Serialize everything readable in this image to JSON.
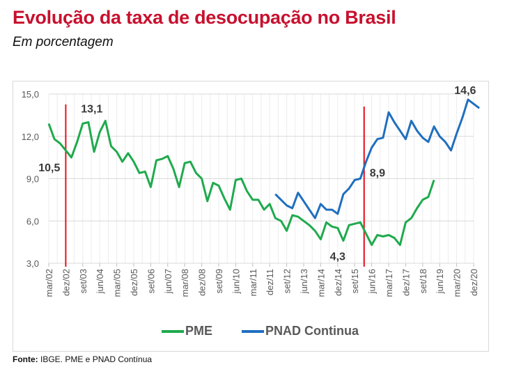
{
  "title": "Evolução da taxa de desocupação no Brasil",
  "subtitle": "Em porcentagem",
  "source_label": "Fonte:",
  "source_text": "IBGE. PME e PNAD Contínua",
  "colors": {
    "title": "#c8102e",
    "pme": "#1faa4d",
    "pnad": "#1f6fbf",
    "marker": "#e8101e",
    "grid": "#d9d9d9",
    "label": "#3a3a3a"
  },
  "chart_data": {
    "type": "line",
    "title": "Evolução da taxa de desocupação no Brasil",
    "subtitle": "Em porcentagem",
    "xlabel": "",
    "ylabel": "",
    "ylim": [
      3.0,
      15.0
    ],
    "yticks": [
      "3,0",
      "6,0",
      "9,0",
      "12,0",
      "15,0"
    ],
    "ytick_values": [
      3,
      6,
      9,
      12,
      15
    ],
    "x_start": "mar/02",
    "x_end": "dez/20",
    "xticks": [
      "mar/02",
      "dez/02",
      "set/03",
      "jun/04",
      "mar/05",
      "dez/05",
      "set/06",
      "jun/07",
      "mar/08",
      "dez/08",
      "set/09",
      "jun/10",
      "mar/11",
      "dez/11",
      "set/12",
      "jun/13",
      "mar/14",
      "dez/14",
      "set/15",
      "jun/16",
      "mar/17",
      "dez/17",
      "set/18",
      "jun/19",
      "mar/20",
      "dez/20"
    ],
    "grid": true,
    "legend_position": "bottom",
    "series": [
      {
        "name": "PME",
        "start": "mar/02",
        "step_months": 3,
        "values": [
          12.9,
          11.8,
          11.5,
          11.0,
          10.5,
          11.6,
          12.9,
          13.0,
          10.9,
          12.3,
          13.1,
          11.3,
          10.9,
          10.2,
          10.8,
          10.2,
          9.4,
          9.5,
          8.4,
          10.3,
          10.4,
          10.6,
          9.7,
          8.4,
          10.1,
          10.2,
          9.4,
          9.0,
          7.4,
          8.7,
          8.5,
          7.6,
          6.8,
          8.9,
          9.0,
          8.1,
          7.5,
          7.5,
          6.8,
          7.2,
          6.2,
          6.0,
          5.3,
          6.4,
          6.3,
          6.0,
          5.7,
          5.3,
          4.7,
          5.9,
          5.6,
          5.5,
          4.6,
          5.7,
          5.8,
          5.9,
          5.1,
          4.3,
          5.0,
          4.9,
          5.0,
          4.8,
          4.3,
          5.9,
          6.2,
          6.9,
          7.5,
          7.7,
          8.9
        ],
        "annotations": [
          {
            "label": "10,5",
            "x": "dez/02",
            "value": 10.5
          },
          {
            "label": "13,1",
            "x": "abr/04",
            "value": 13.1
          },
          {
            "label": "4,3",
            "x": "dez/14",
            "value": 4.3
          },
          {
            "label": "8,9",
            "x": "fev/16",
            "value": 8.9
          }
        ]
      },
      {
        "name": "PNAD Continua",
        "start": "mar/12",
        "step_months": 3,
        "values": [
          7.9,
          7.5,
          7.1,
          6.9,
          8.0,
          7.4,
          6.8,
          6.2,
          7.2,
          6.8,
          6.8,
          6.5,
          7.9,
          8.3,
          8.9,
          9.0,
          10.2,
          11.2,
          11.8,
          11.9,
          13.7,
          13.0,
          12.4,
          11.8,
          13.1,
          12.4,
          11.9,
          11.6,
          12.7,
          12.0,
          11.6,
          11.0,
          12.2,
          13.3,
          14.6,
          14.3,
          14.0
        ],
        "annotations": [
          {
            "label": "14,6",
            "x": "set/20",
            "value": 14.6
          }
        ]
      }
    ],
    "vertical_markers": [
      "dez/02",
      "fev/16"
    ]
  },
  "legend": [
    {
      "label": "PME"
    },
    {
      "label": "PNAD Continua"
    }
  ]
}
